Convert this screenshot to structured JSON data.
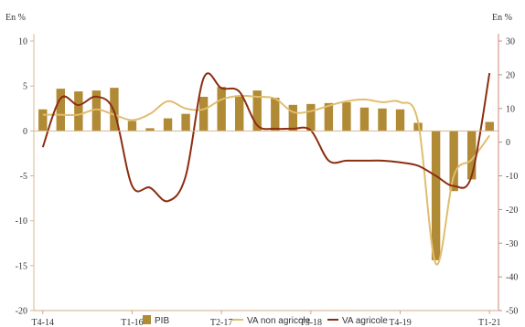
{
  "chart_data": {
    "type": "bar",
    "left_unit": "En %",
    "right_unit": "En %",
    "x": [
      "T4-14",
      "T1-15",
      "T2-15",
      "T3-15",
      "T4-15",
      "T1-16",
      "T2-16",
      "T3-16",
      "T4-16",
      "T1-17",
      "T2-17",
      "T3-17",
      "T4-17",
      "T1-18",
      "T2-18",
      "T3-18",
      "T4-18",
      "T1-19",
      "T2-19",
      "T3-19",
      "T4-19",
      "T1-20",
      "T2-20",
      "T3-20",
      "T4-20",
      "T1-21"
    ],
    "x_tick_labels": [
      {
        "index": 0,
        "label": "T4-14"
      },
      {
        "index": 5,
        "label": "T1-16"
      },
      {
        "index": 10,
        "label": "T2-17"
      },
      {
        "index": 15,
        "label": "T3-18"
      },
      {
        "index": 20,
        "label": "T4-19"
      },
      {
        "index": 25,
        "label": "T1-21"
      }
    ],
    "y_left": {
      "min": -20,
      "max": 10,
      "ticks": [
        "10",
        "5",
        "0",
        "-5",
        "-10",
        "-15",
        "-20"
      ]
    },
    "y_right": {
      "min": -50,
      "max": 30,
      "ticks": [
        "30",
        "20",
        "10",
        "0",
        "-10",
        "-20",
        "-30",
        "-40",
        "-50"
      ]
    },
    "series": [
      {
        "name": "PIB",
        "type": "bar",
        "axis": "left",
        "color": "#b08a35",
        "values": [
          2.4,
          4.7,
          4.4,
          4.5,
          4.8,
          1.1,
          0.3,
          1.4,
          1.9,
          3.8,
          4.9,
          3.9,
          4.5,
          3.7,
          2.9,
          3.0,
          3.1,
          3.2,
          2.6,
          2.5,
          2.4,
          0.9,
          -14.4,
          -6.7,
          -5.4,
          1.0
        ]
      },
      {
        "name": "VA non agricole",
        "type": "line",
        "axis": "left",
        "color": "#e0bd6f",
        "values": [
          1.8,
          1.8,
          1.8,
          2.4,
          1.8,
          1.2,
          1.9,
          3.3,
          2.5,
          2.4,
          3.5,
          3.9,
          3.8,
          3.6,
          2.1,
          2.2,
          2.8,
          3.3,
          3.5,
          3.2,
          3.2,
          1.0,
          -14.8,
          -5.0,
          -3.2,
          -0.5
        ]
      },
      {
        "name": "VA agricole",
        "type": "line",
        "axis": "right",
        "color": "#8b2e10",
        "values": [
          -1.5,
          13.0,
          11.0,
          13.5,
          9.0,
          -13.0,
          -13.5,
          -17.5,
          -10.0,
          19.0,
          16.0,
          15.0,
          5.0,
          4.0,
          4.0,
          3.5,
          -5.5,
          -5.5,
          -5.5,
          -5.5,
          -6.0,
          -7.0,
          -10.0,
          -13.0,
          -10.0,
          20.5
        ]
      }
    ],
    "legend": [
      "PIB",
      "VA non agricole",
      "VA agricole"
    ],
    "legend_position": "bottom",
    "grid": false
  }
}
